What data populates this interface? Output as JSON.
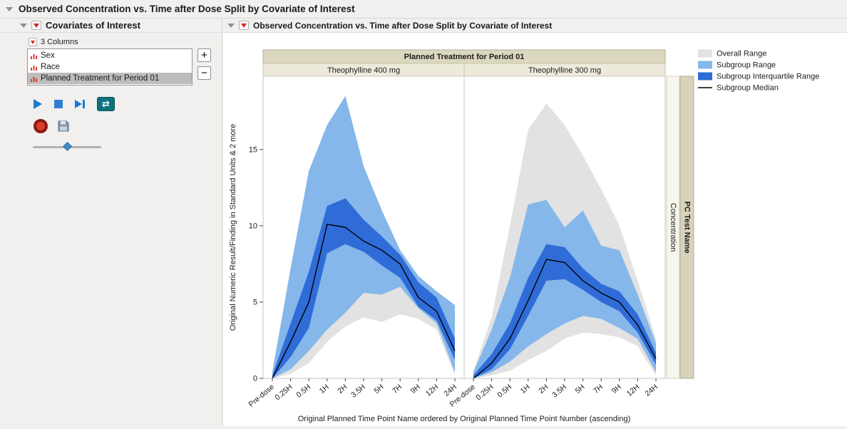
{
  "window": {
    "title": "Observed Concentration vs. Time after Dose Split by Covariate of Interest"
  },
  "left_panel": {
    "title": "Covariates of Interest",
    "columns_label": "3 Columns",
    "columns": [
      "Sex",
      "Race",
      "Planned Treatment for Period 01"
    ],
    "selected_column": "Planned Treatment for Period 01",
    "add_label": "+",
    "remove_label": "−"
  },
  "icons": {
    "loop_glyph": "⇄"
  },
  "report": {
    "title": "Observed Concentration vs. Time after Dose Split by Covariate of Interest"
  },
  "chart_data": {
    "type": "area",
    "group_header": "Planned Treatment for Period 01",
    "x_categories": [
      "Pre-dose",
      "0.25H",
      "0.5H",
      "1H",
      "2H",
      "3.5H",
      "5H",
      "7H",
      "9H",
      "12H",
      "24H"
    ],
    "xlabel": "Original Planned Time Point Name ordered by Original Planned Time Point Number (ascending)",
    "ylabel": "Original Numeric Result/Finding in Standard Units & 2 more",
    "y_ticks": [
      0,
      5,
      10,
      15
    ],
    "ylim": [
      0,
      19.8
    ],
    "right_axis": {
      "variable": "PC Test Name",
      "level": "Concentration"
    },
    "colors": {
      "overall": "#e2e2e2",
      "subgroup": "#85b7ea",
      "iqr": "#2f6cd8",
      "median": "#000000",
      "group_header_bg": "#dcd8c0",
      "panel_header_bg": "#edeadb"
    },
    "legend": [
      {
        "label": "Overall Range",
        "swatch": "fill",
        "color": "#e2e2e2"
      },
      {
        "label": "Subgroup Range",
        "swatch": "fill",
        "color": "#85b7ea"
      },
      {
        "label": "Subgroup Interquartile Range",
        "swatch": "fill",
        "color": "#2f6cd8"
      },
      {
        "label": "Subgroup Median",
        "swatch": "line",
        "color": "#000000"
      }
    ],
    "panels": [
      {
        "label": "Theophylline 400 mg",
        "overall_high": [
          0.5,
          7.2,
          13.6,
          16.6,
          18.5,
          13.9,
          11.0,
          8.4,
          6.7,
          5.7,
          4.8
        ],
        "overall_low": [
          0.0,
          0.3,
          1.0,
          2.4,
          3.4,
          4.0,
          3.7,
          4.2,
          3.9,
          3.2,
          0.2
        ],
        "subgroup_high": [
          0.4,
          7.2,
          13.6,
          16.6,
          18.5,
          13.9,
          11.0,
          8.4,
          6.7,
          5.7,
          4.8
        ],
        "subgroup_low": [
          0.0,
          0.6,
          1.8,
          3.2,
          4.3,
          5.6,
          5.5,
          6.0,
          4.6,
          3.6,
          0.4
        ],
        "iqr_high": [
          0.2,
          3.6,
          7.0,
          11.3,
          11.8,
          10.4,
          9.3,
          8.1,
          6.3,
          5.3,
          2.6
        ],
        "iqr_low": [
          0.0,
          1.4,
          3.3,
          8.2,
          8.8,
          8.3,
          7.4,
          6.6,
          4.7,
          3.8,
          1.2
        ],
        "median": [
          0.0,
          2.4,
          5.0,
          10.1,
          9.9,
          9.0,
          8.4,
          7.5,
          5.3,
          4.4,
          1.8
        ]
      },
      {
        "label": "Theophylline 300 mg",
        "overall_high": [
          0.5,
          4.0,
          10.0,
          16.3,
          18.0,
          16.6,
          14.6,
          12.4,
          10.0,
          6.4,
          2.6
        ],
        "overall_low": [
          0.0,
          0.2,
          0.5,
          1.2,
          1.8,
          2.6,
          3.0,
          2.9,
          2.7,
          2.1,
          0.2
        ],
        "subgroup_high": [
          0.4,
          3.2,
          6.6,
          11.4,
          11.7,
          9.9,
          11.0,
          8.7,
          8.4,
          5.5,
          2.3
        ],
        "subgroup_low": [
          0.0,
          0.4,
          1.1,
          2.1,
          2.9,
          3.6,
          4.1,
          3.9,
          3.3,
          2.6,
          0.4
        ],
        "iqr_high": [
          0.2,
          1.6,
          3.6,
          6.6,
          8.8,
          8.6,
          7.2,
          6.2,
          5.7,
          4.2,
          1.7
        ],
        "iqr_low": [
          0.0,
          0.6,
          1.9,
          4.1,
          6.4,
          6.5,
          5.8,
          5.0,
          4.4,
          3.0,
          0.9
        ],
        "median": [
          0.0,
          1.0,
          2.6,
          5.1,
          7.8,
          7.6,
          6.4,
          5.6,
          5.0,
          3.5,
          1.3
        ]
      }
    ]
  }
}
